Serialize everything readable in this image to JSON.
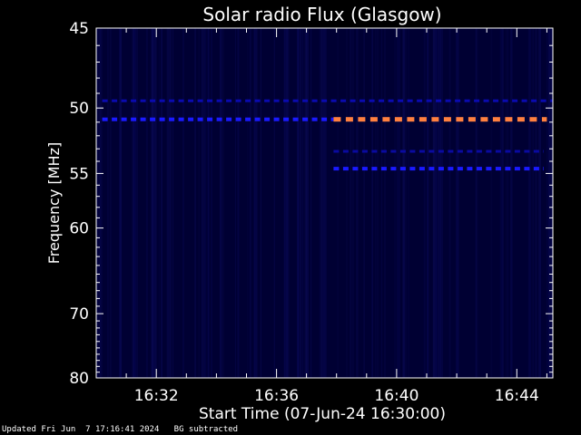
{
  "chart_data": {
    "type": "heatmap",
    "title": "Solar radio Flux (Glasgow)",
    "xlabel": "Start Time (07-Jun-24 16:30:00)",
    "ylabel": "Frequency [MHz]",
    "x_range_minutes": [
      0,
      15.2
    ],
    "x_ticks": [
      {
        "minute": 2,
        "label": "16:32"
      },
      {
        "minute": 6,
        "label": "16:36"
      },
      {
        "minute": 10,
        "label": "16:40"
      },
      {
        "minute": 14,
        "label": "16:44"
      }
    ],
    "y_range_mhz": [
      45,
      80
    ],
    "y_scale": "reciprocal",
    "y_ticks": [
      {
        "mhz": 45,
        "label": "45"
      },
      {
        "mhz": 50,
        "label": "50"
      },
      {
        "mhz": 55,
        "label": "55"
      },
      {
        "mhz": 60,
        "label": "60"
      },
      {
        "mhz": 70,
        "label": "70"
      },
      {
        "mhz": 80,
        "label": "80"
      }
    ],
    "background_color": "#000033",
    "bands": [
      {
        "mhz": 50.8,
        "minute_start": 0.2,
        "minute_end": 7.9,
        "color": "#1a1aff",
        "intensity": "medium"
      },
      {
        "mhz": 50.8,
        "minute_start": 7.9,
        "minute_end": 15.0,
        "color": "#ff8040",
        "intensity": "high"
      },
      {
        "mhz": 49.5,
        "minute_start": 0.2,
        "minute_end": 15.2,
        "color": "#0a0ab0",
        "intensity": "low"
      },
      {
        "mhz": 53.2,
        "minute_start": 7.9,
        "minute_end": 14.9,
        "color": "#0a0aa0",
        "intensity": "low"
      },
      {
        "mhz": 54.6,
        "minute_start": 7.9,
        "minute_end": 14.9,
        "color": "#1a1aff",
        "intensity": "medium"
      }
    ]
  },
  "footer": {
    "updated": "Updated Fri Jun  7 17:16:41 2024",
    "note": "BG subtracted"
  },
  "colors": {
    "axes": "#ffffff",
    "page_background": "#000000"
  }
}
